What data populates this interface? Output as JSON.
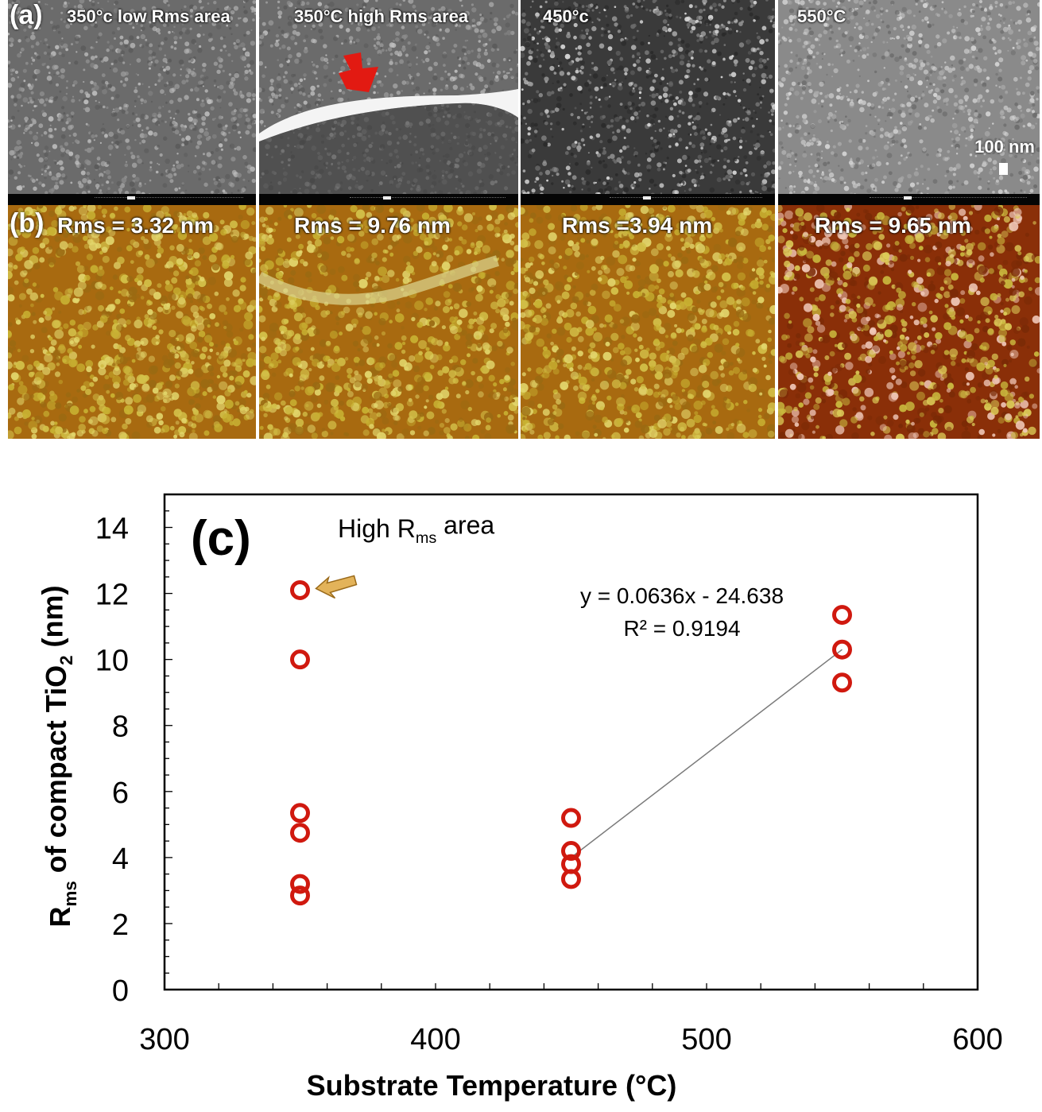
{
  "panel_a": {
    "letter": "(a)",
    "tiles": [
      {
        "label": "350°c low Rms area"
      },
      {
        "label": "350°C high Rms area"
      },
      {
        "label": "450°c"
      },
      {
        "label": "550°C"
      }
    ],
    "scale_bar_label": "100 nm"
  },
  "panel_b": {
    "letter": "(b)",
    "tiles": [
      {
        "label": "Rms = 3.32 nm"
      },
      {
        "label": "Rms = 9.76 nm"
      },
      {
        "label": "Rms =3.94 nm"
      },
      {
        "label": "Rms = 9.65 nm"
      }
    ]
  },
  "chart_data": {
    "type": "scatter",
    "panel_letter": "(c)",
    "xlabel": "Substrate Temperature (°C)",
    "ylabel": "R_ms of compact TiO_2 (nm)",
    "xlim": [
      300,
      600
    ],
    "ylim": [
      0,
      15
    ],
    "xticks": [
      300,
      400,
      500,
      600
    ],
    "yticks": [
      0,
      2,
      4,
      6,
      8,
      10,
      12,
      14
    ],
    "series": [
      {
        "marker": "open-circle",
        "color": "#d0190f",
        "points": [
          [
            350,
            12.1
          ],
          [
            350,
            10.0
          ],
          [
            350,
            5.35
          ],
          [
            350,
            4.75
          ],
          [
            350,
            3.2
          ],
          [
            350,
            2.85
          ],
          [
            450,
            5.2
          ],
          [
            450,
            4.2
          ],
          [
            450,
            3.8
          ],
          [
            450,
            3.35
          ],
          [
            550,
            11.35
          ],
          [
            550,
            10.3
          ],
          [
            550,
            9.3
          ]
        ]
      }
    ],
    "trendline": {
      "x": [
        450,
        550
      ],
      "y": [
        4.0,
        10.3
      ],
      "color": "#7a7a7a"
    },
    "equation": "y = 0.0636x - 24.638",
    "r_squared": "R² = 0.9194",
    "annotation": {
      "text": "High R_ms area",
      "target": [
        350,
        12.1
      ]
    },
    "grid": false
  }
}
